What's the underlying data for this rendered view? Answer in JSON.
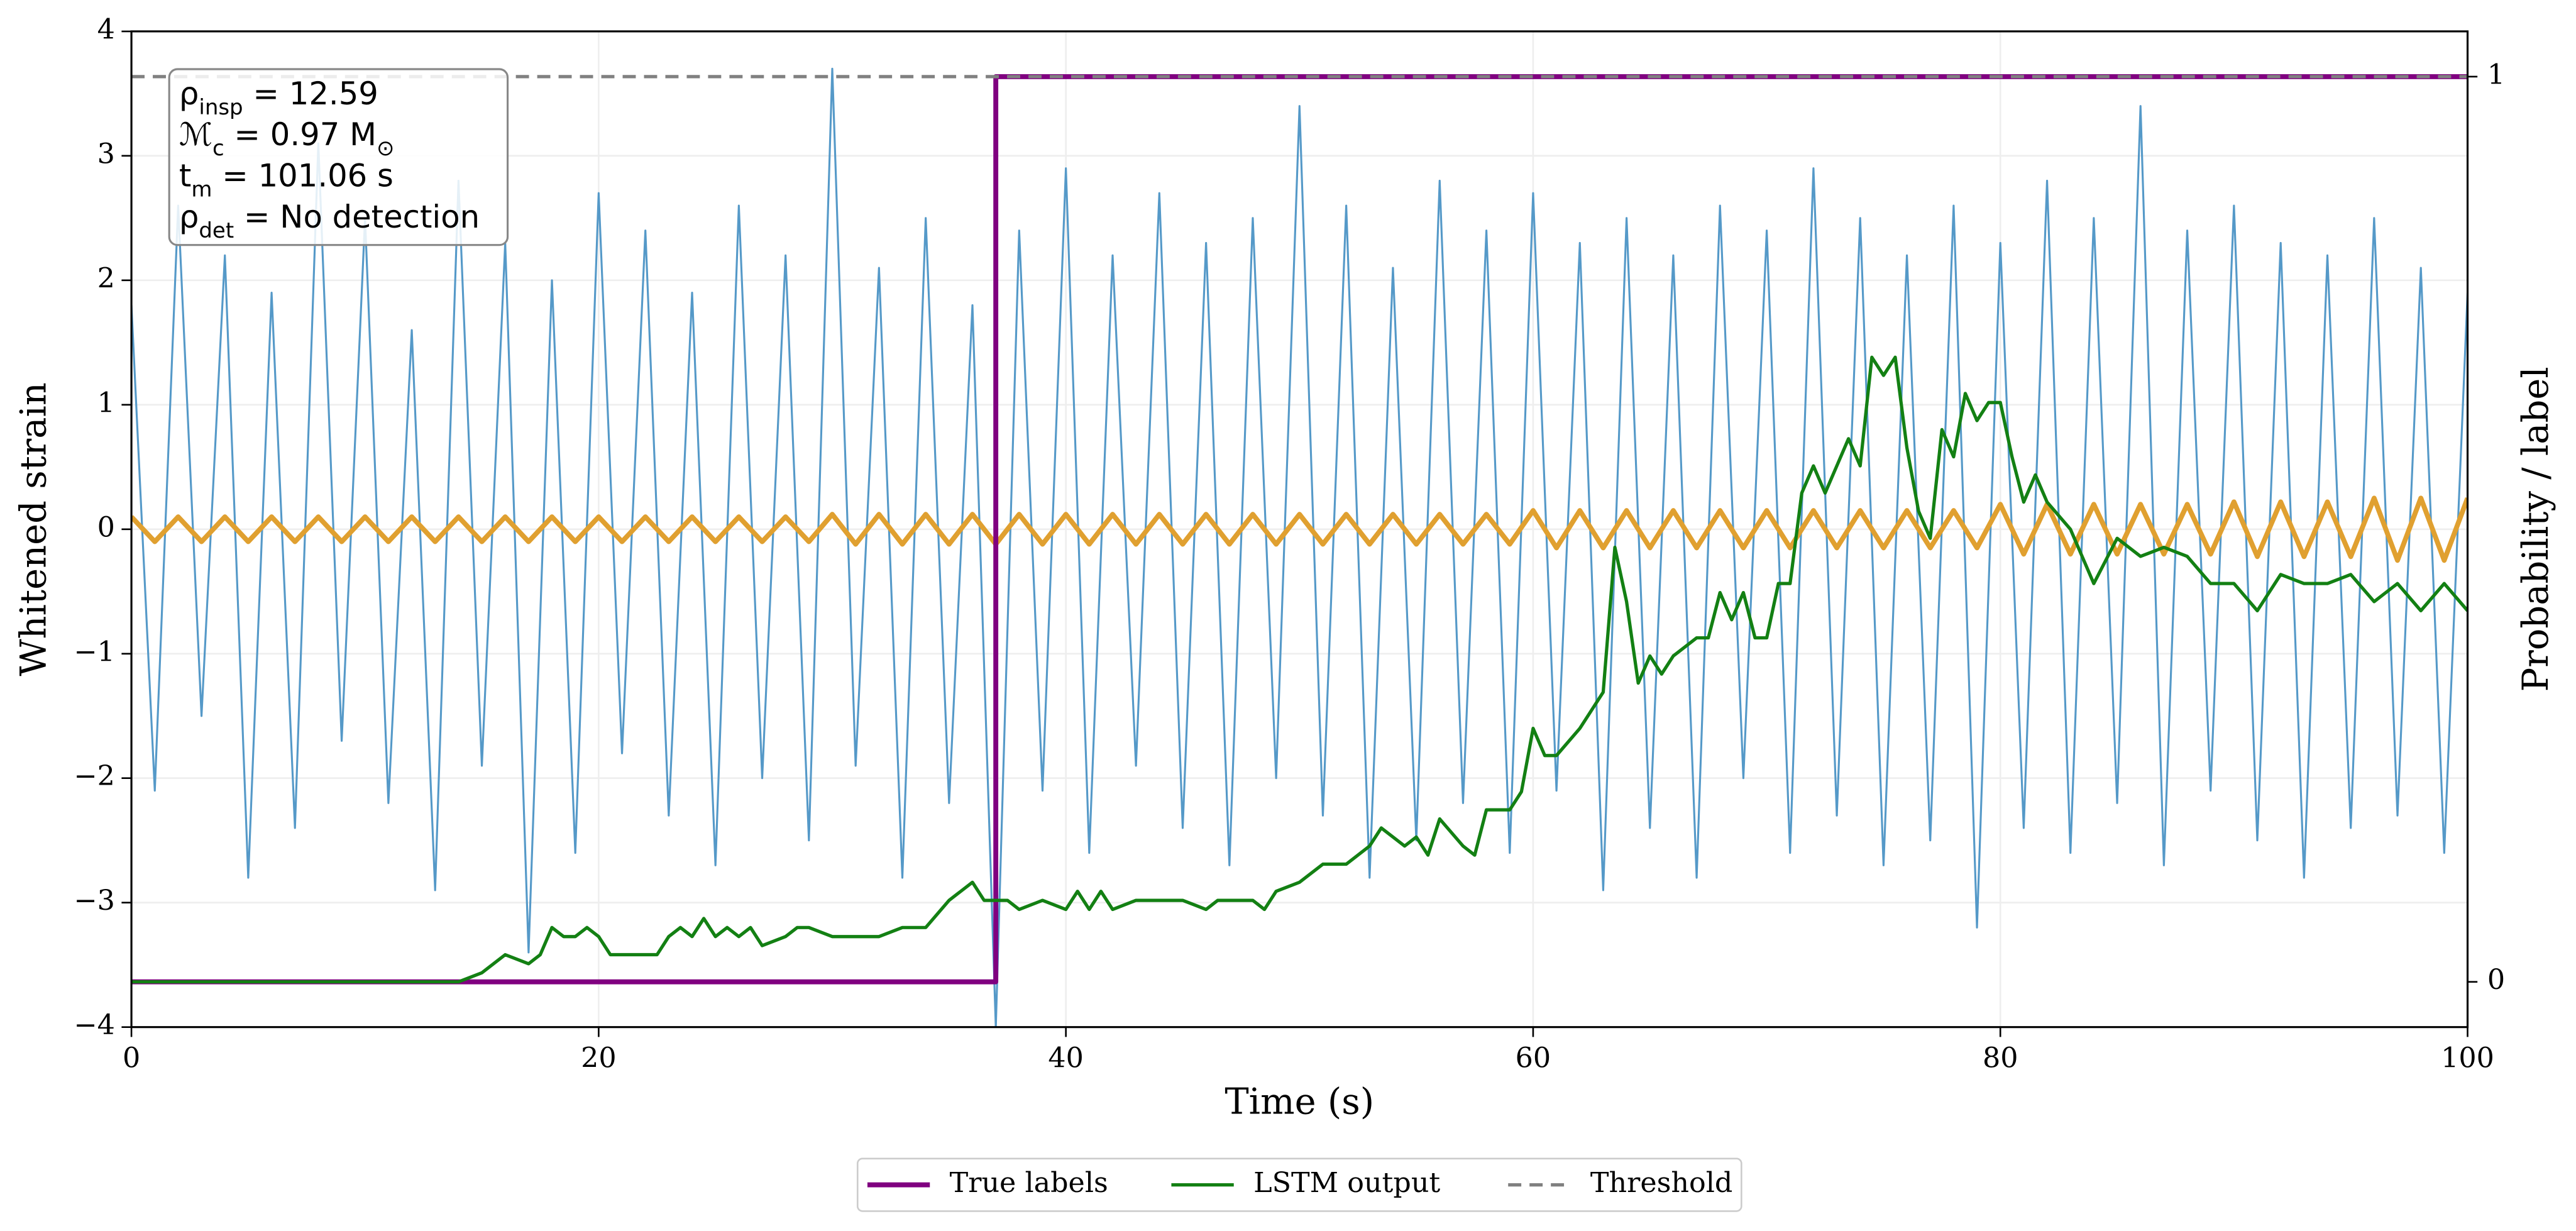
{
  "chart_data": {
    "type": "line",
    "xlabel": "Time (s)",
    "ylabel": "Whitened strain",
    "y2label": "Probability / label",
    "xlim": [
      0,
      100
    ],
    "xticks": [
      0,
      20,
      40,
      60,
      80,
      100
    ],
    "ylim": [
      -4,
      4
    ],
    "yticks": [
      {
        "value": -4,
        "label": "−4"
      },
      {
        "value": -3,
        "label": "−3"
      },
      {
        "value": -2,
        "label": "−2"
      },
      {
        "value": -1,
        "label": "−1"
      },
      0,
      1,
      2,
      3,
      4
    ],
    "y2lim": [
      -0.05,
      1.05
    ],
    "y2ticks": [
      0,
      1
    ],
    "grid": true,
    "legend": "lower center",
    "annotation": [
      [
        {
          "t": "ρ"
        },
        {
          "t": "insp",
          "sub": true
        },
        {
          "t": " = 12.59"
        }
      ],
      [
        {
          "t": "ℳ"
        },
        {
          "t": "c",
          "sub": true
        },
        {
          "t": " = 0.97 M"
        },
        {
          "t": "⊙",
          "sub": true
        }
      ],
      [
        {
          "t": "t"
        },
        {
          "t": "m",
          "sub": true
        },
        {
          "t": " = 101.06 s"
        }
      ],
      [
        {
          "t": "ρ"
        },
        {
          "t": "det",
          "sub": true
        },
        {
          "t": " = No detection"
        }
      ]
    ],
    "x": [
      0,
      1,
      2,
      3,
      4,
      5,
      6,
      7,
      8,
      9,
      10,
      11,
      12,
      13,
      14,
      15,
      16,
      17,
      18,
      19,
      20,
      21,
      22,
      23,
      24,
      25,
      26,
      27,
      28,
      29,
      30,
      31,
      32,
      33,
      34,
      35,
      36,
      37,
      38,
      39,
      40,
      41,
      42,
      43,
      44,
      45,
      46,
      47,
      48,
      49,
      50,
      51,
      52,
      53,
      54,
      55,
      56,
      57,
      58,
      59,
      60,
      61,
      62,
      63,
      64,
      65,
      66,
      67,
      68,
      69,
      70,
      71,
      72,
      73,
      74,
      75,
      76,
      77,
      78,
      79,
      80,
      81,
      82,
      83,
      84,
      85,
      86,
      87,
      88,
      89,
      90,
      91,
      92,
      93,
      94,
      95,
      96,
      97,
      98,
      99,
      100
    ],
    "series": [
      {
        "color": "#5599c8",
        "width": 1.2,
        "values": [
          1.8,
          -2.1,
          2.6,
          -1.5,
          2.2,
          -2.8,
          1.9,
          -2.4,
          3.1,
          -1.7,
          2.5,
          -2.2,
          1.6,
          -2.9,
          2.8,
          -1.9,
          2.3,
          -3.4,
          2.0,
          -2.6,
          2.7,
          -1.8,
          2.4,
          -2.3,
          1.9,
          -2.7,
          2.6,
          -2.0,
          2.2,
          -2.5,
          3.7,
          -1.9,
          2.1,
          -2.8,
          2.5,
          -2.2,
          1.8,
          -4.0,
          2.4,
          -2.1,
          2.9,
          -2.6,
          2.2,
          -1.9,
          2.7,
          -2.4,
          2.3,
          -2.7,
          2.5,
          -2.0,
          3.4,
          -2.3,
          2.6,
          -2.8,
          2.1,
          -2.5,
          2.8,
          -2.2,
          2.4,
          -2.6,
          2.7,
          -2.1,
          2.3,
          -2.9,
          2.5,
          -2.4,
          2.2,
          -2.8,
          2.6,
          -2.0,
          2.4,
          -2.6,
          2.9,
          -2.3,
          2.5,
          -2.7,
          2.2,
          -2.5,
          2.6,
          -3.2,
          2.3,
          -2.4,
          2.8,
          -2.6,
          2.5,
          -2.2,
          3.4,
          -2.7,
          2.4,
          -2.1,
          2.6,
          -2.5,
          2.3,
          -2.8,
          2.2,
          -2.4,
          2.5,
          -2.3,
          2.1,
          -2.6,
          1.9
        ]
      },
      {
        "color": "#e0a030",
        "width": 3,
        "values": [
          0.1,
          -0.1,
          0.1,
          -0.1,
          0.1,
          -0.1,
          0.1,
          -0.1,
          0.1,
          -0.1,
          0.1,
          -0.1,
          0.1,
          -0.1,
          0.1,
          -0.1,
          0.1,
          -0.1,
          0.1,
          -0.1,
          0.1,
          -0.1,
          0.1,
          -0.1,
          0.1,
          -0.1,
          0.1,
          -0.1,
          0.1,
          -0.1,
          0.12,
          -0.12,
          0.12,
          -0.12,
          0.12,
          -0.12,
          0.12,
          -0.12,
          0.12,
          -0.12,
          0.12,
          -0.12,
          0.12,
          -0.12,
          0.12,
          -0.12,
          0.12,
          -0.12,
          0.12,
          -0.12,
          0.12,
          -0.12,
          0.12,
          -0.12,
          0.12,
          -0.12,
          0.12,
          -0.12,
          0.12,
          -0.12,
          0.15,
          -0.15,
          0.15,
          -0.15,
          0.15,
          -0.15,
          0.15,
          -0.15,
          0.15,
          -0.15,
          0.15,
          -0.15,
          0.15,
          -0.15,
          0.15,
          -0.15,
          0.15,
          -0.15,
          0.15,
          -0.15,
          0.2,
          -0.2,
          0.2,
          -0.2,
          0.2,
          -0.2,
          0.2,
          -0.2,
          0.2,
          -0.2,
          0.22,
          -0.22,
          0.22,
          -0.22,
          0.22,
          -0.22,
          0.25,
          -0.25,
          0.25,
          -0.25,
          0.25
        ]
      },
      {
        "name": "True labels",
        "color": "#800080",
        "width": 3,
        "axis": "y2",
        "x": [
          0,
          37,
          37,
          100
        ],
        "values": [
          0,
          0,
          1,
          1
        ]
      },
      {
        "name": "LSTM output",
        "color": "#138013",
        "width": 2,
        "axis": "y2",
        "x": [
          0,
          13,
          14,
          15,
          16,
          17,
          17.5,
          18,
          18.5,
          19,
          19.5,
          20,
          20.5,
          21,
          21.5,
          22,
          22.5,
          23,
          23.5,
          24,
          24.5,
          25,
          25.5,
          26,
          26.5,
          27,
          28,
          28.5,
          29,
          30,
          31,
          32,
          33,
          34,
          35,
          36,
          36.5,
          37,
          37.5,
          38,
          39,
          40,
          40.5,
          41,
          41.5,
          42,
          43,
          44,
          45,
          46,
          46.5,
          47,
          48,
          48.5,
          49,
          50,
          51,
          52,
          53,
          53.5,
          54,
          54.5,
          55,
          55.5,
          56,
          57,
          57.5,
          58,
          59,
          59.5,
          60,
          60.5,
          61,
          62,
          63,
          63.5,
          64,
          64.5,
          65,
          65.5,
          66,
          67,
          67.5,
          68,
          68.5,
          69,
          69.5,
          70,
          70.5,
          71,
          71.5,
          72,
          72.5,
          73,
          73.5,
          74,
          74.5,
          75,
          75.5,
          76,
          76.5,
          77,
          77.5,
          78,
          78.5,
          79,
          79.5,
          80,
          80.5,
          81,
          81.5,
          82,
          83,
          84,
          85,
          86,
          87,
          88,
          89,
          90,
          91,
          92,
          93,
          94,
          95,
          96,
          97,
          98,
          99,
          100
        ],
        "values": [
          0,
          0,
          0,
          0.01,
          0.03,
          0.02,
          0.03,
          0.06,
          0.05,
          0.05,
          0.06,
          0.05,
          0.03,
          0.03,
          0.03,
          0.03,
          0.03,
          0.05,
          0.06,
          0.05,
          0.07,
          0.05,
          0.06,
          0.05,
          0.06,
          0.04,
          0.05,
          0.06,
          0.06,
          0.05,
          0.05,
          0.05,
          0.06,
          0.06,
          0.09,
          0.11,
          0.09,
          0.09,
          0.09,
          0.08,
          0.09,
          0.08,
          0.1,
          0.08,
          0.1,
          0.08,
          0.09,
          0.09,
          0.09,
          0.08,
          0.09,
          0.09,
          0.09,
          0.08,
          0.1,
          0.11,
          0.13,
          0.13,
          0.15,
          0.17,
          0.16,
          0.15,
          0.16,
          0.14,
          0.18,
          0.15,
          0.14,
          0.19,
          0.19,
          0.21,
          0.28,
          0.25,
          0.25,
          0.28,
          0.32,
          0.48,
          0.42,
          0.33,
          0.36,
          0.34,
          0.36,
          0.38,
          0.38,
          0.43,
          0.4,
          0.43,
          0.38,
          0.38,
          0.44,
          0.44,
          0.54,
          0.57,
          0.54,
          0.57,
          0.6,
          0.57,
          0.69,
          0.67,
          0.69,
          0.59,
          0.52,
          0.49,
          0.61,
          0.58,
          0.65,
          0.62,
          0.64,
          0.64,
          0.58,
          0.53,
          0.56,
          0.53,
          0.5,
          0.44,
          0.49,
          0.47,
          0.48,
          0.47,
          0.44,
          0.44,
          0.41,
          0.45,
          0.44,
          0.44,
          0.45,
          0.42,
          0.44,
          0.41,
          0.44,
          0.41
        ]
      },
      {
        "name": "Threshold",
        "color": "#808080",
        "width": 2,
        "dash": true,
        "axis": "y2",
        "x": [
          0,
          100
        ],
        "values": [
          1,
          1
        ]
      }
    ]
  }
}
